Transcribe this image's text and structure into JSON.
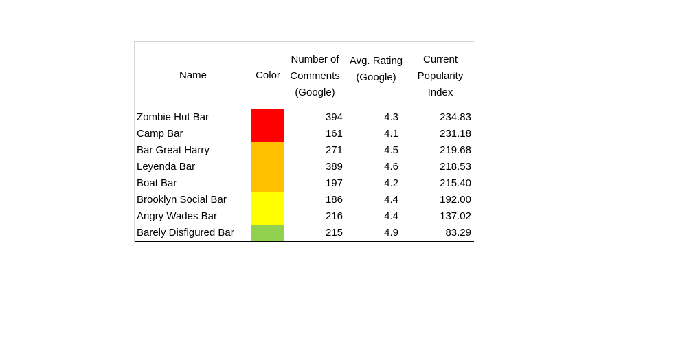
{
  "chart_data": {
    "type": "table",
    "columns": [
      {
        "key": "name",
        "lines": [
          "Name"
        ]
      },
      {
        "key": "color",
        "lines": [
          "Color"
        ]
      },
      {
        "key": "comments",
        "lines": [
          "Number of",
          "Comments",
          "(Google)"
        ]
      },
      {
        "key": "rating",
        "lines": [
          "Avg. Rating",
          "(Google)"
        ]
      },
      {
        "key": "popularity",
        "lines": [
          "Current",
          "Popularity",
          "Index"
        ]
      }
    ],
    "rows": [
      {
        "name": "Zombie Hut Bar",
        "color": "#ff0000",
        "comments": "394",
        "rating": "4.3",
        "popularity": "234.83"
      },
      {
        "name": "Camp Bar",
        "color": "#ff0000",
        "comments": "161",
        "rating": "4.1",
        "popularity": "231.18"
      },
      {
        "name": "Bar Great Harry",
        "color": "#ffc000",
        "comments": "271",
        "rating": "4.5",
        "popularity": "219.68"
      },
      {
        "name": "Leyenda Bar",
        "color": "#ffc000",
        "comments": "389",
        "rating": "4.6",
        "popularity": "218.53"
      },
      {
        "name": "Boat Bar",
        "color": "#ffc000",
        "comments": "197",
        "rating": "4.2",
        "popularity": "215.40"
      },
      {
        "name": "Brooklyn Social Bar",
        "color": "#ffff00",
        "comments": "186",
        "rating": "4.4",
        "popularity": "192.00"
      },
      {
        "name": "Angry Wades Bar",
        "color": "#ffff00",
        "comments": "216",
        "rating": "4.4",
        "popularity": "137.02"
      },
      {
        "name": "Barely Disfigured Bar",
        "color": "#92d050",
        "comments": "215",
        "rating": "4.9",
        "popularity": "83.29"
      }
    ]
  }
}
